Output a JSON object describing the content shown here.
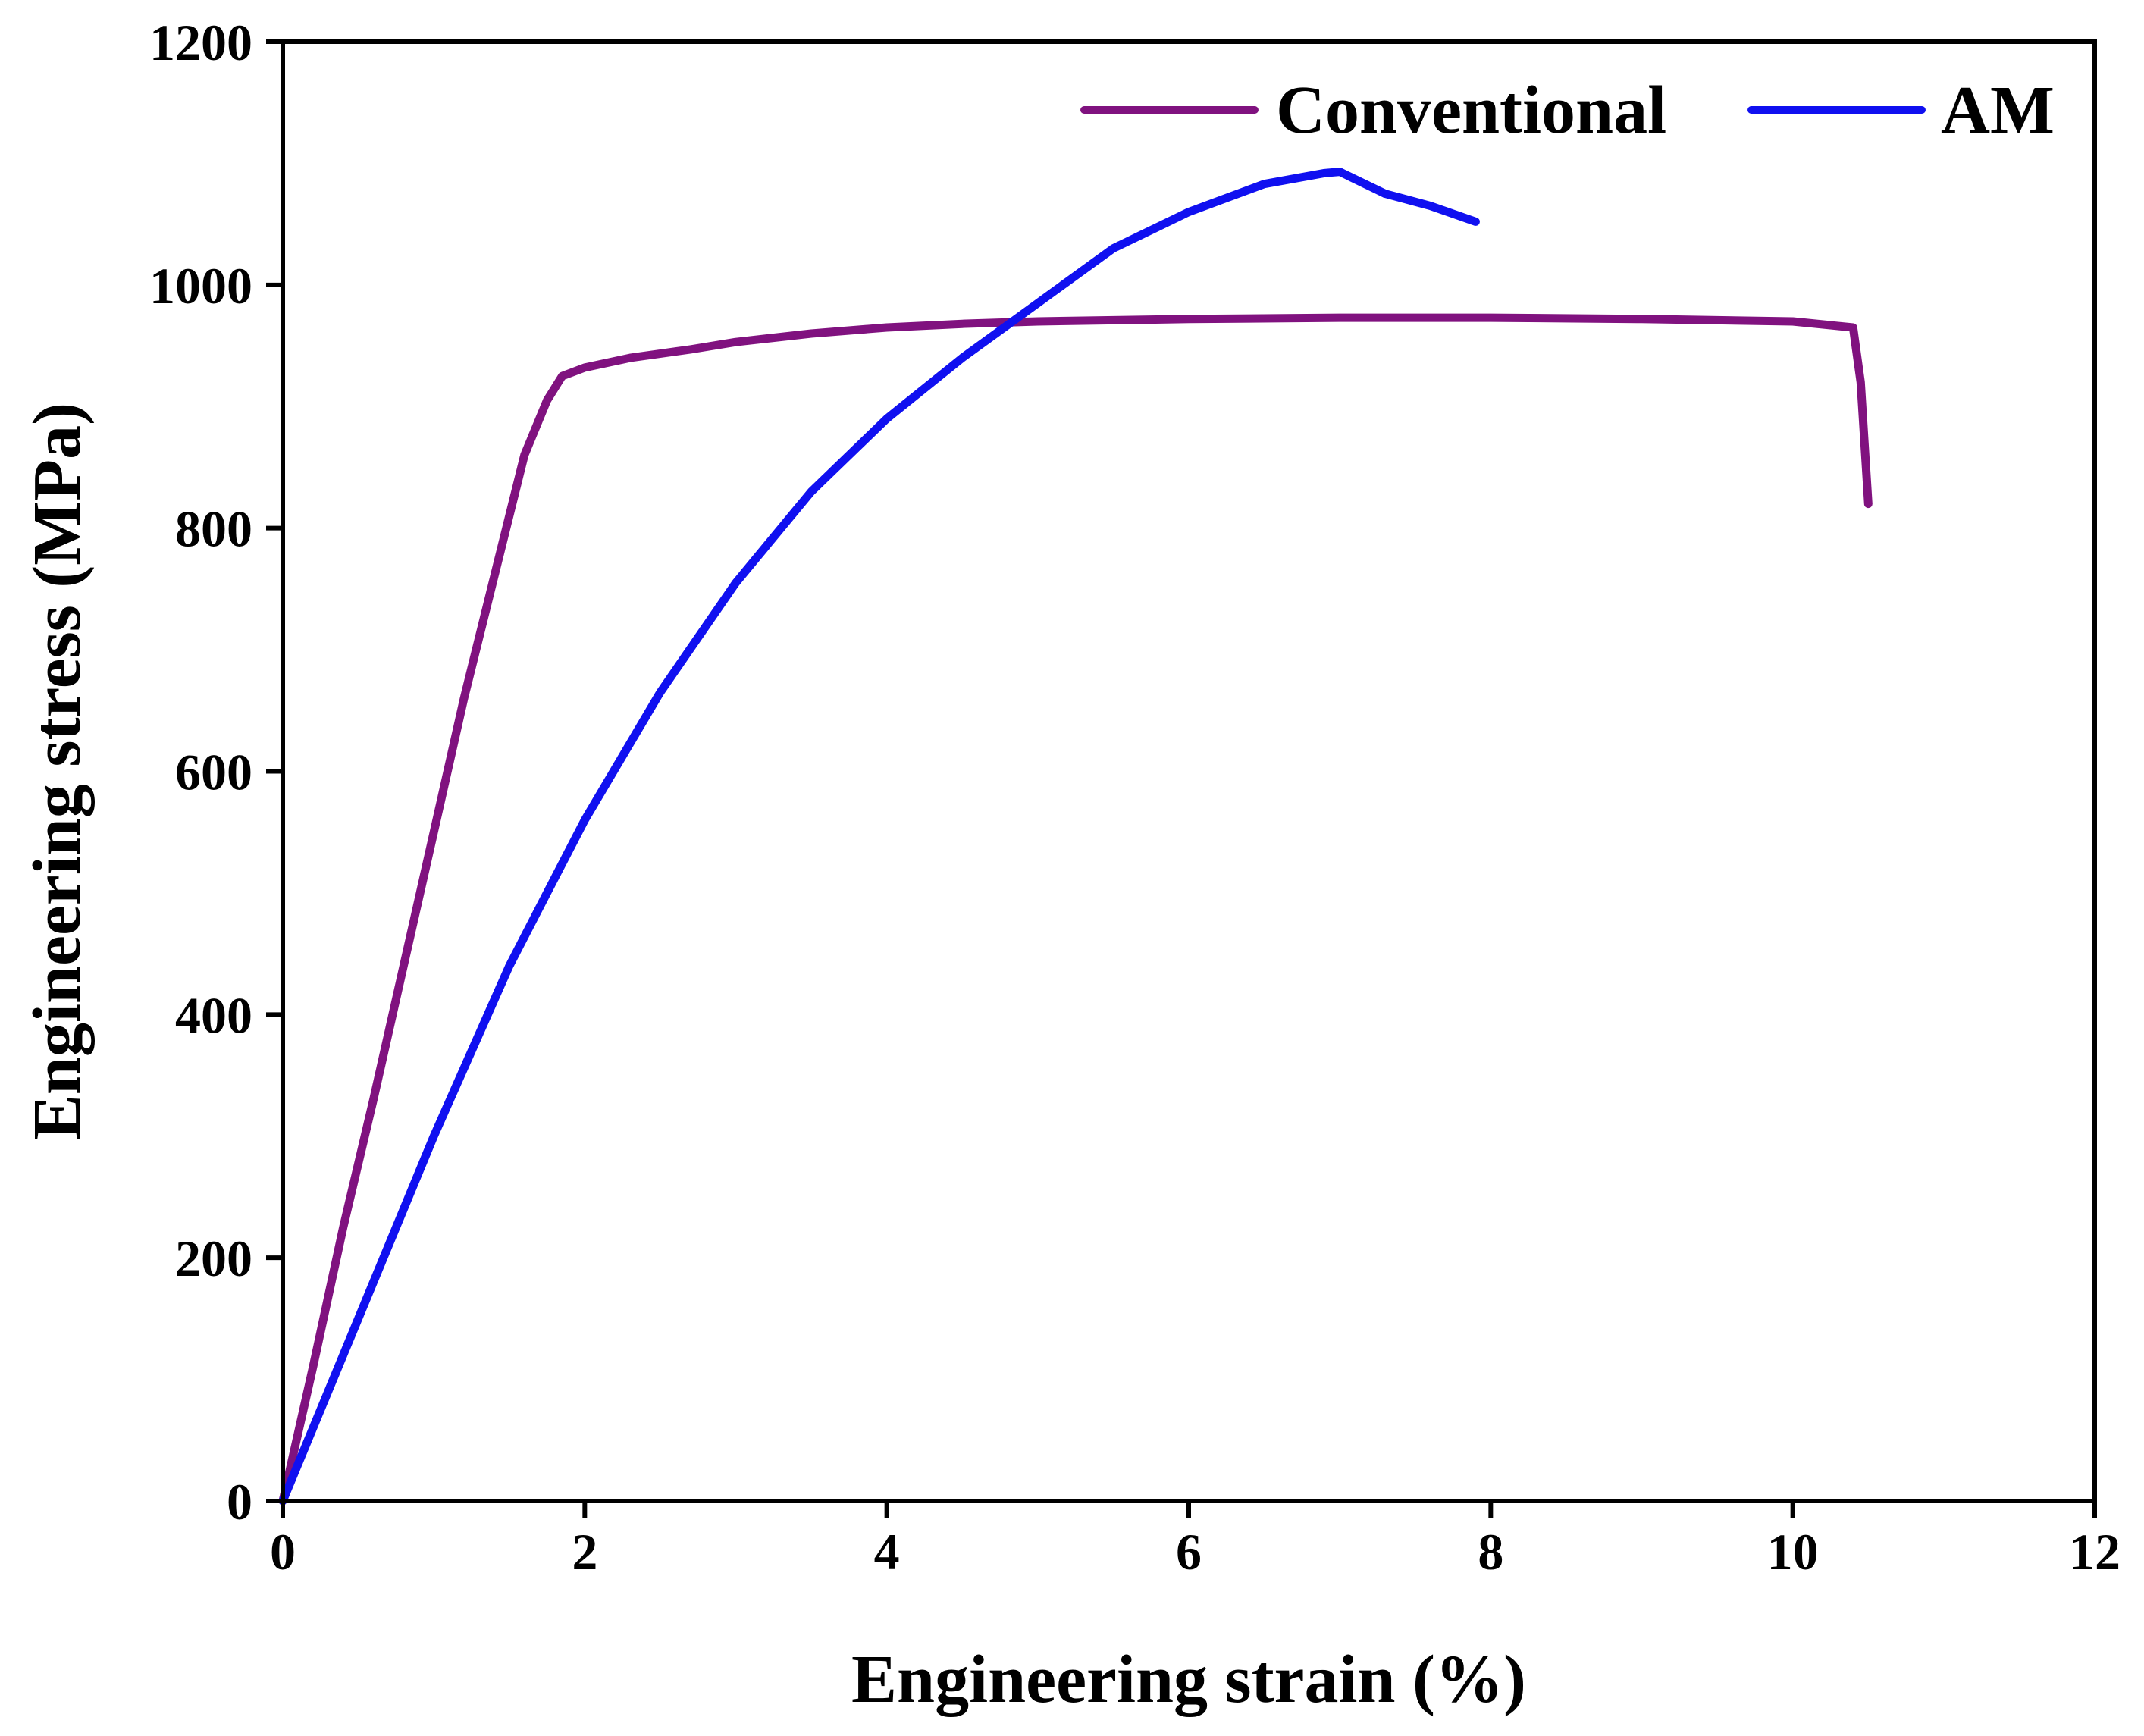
{
  "colors": {
    "conventional": "#80127f",
    "am": "#1010f0",
    "axis": "#000000"
  },
  "chart_data": {
    "type": "line",
    "title": "",
    "xlabel": "Engineering strain (%)",
    "ylabel": "Engineering stress (MPa)",
    "xlim": [
      0,
      12
    ],
    "ylim": [
      0,
      1200
    ],
    "xticks": [
      0,
      2,
      4,
      6,
      8,
      10,
      12
    ],
    "yticks": [
      0,
      200,
      400,
      600,
      800,
      1000,
      1200
    ],
    "grid": false,
    "legend_position": "top-right",
    "series": [
      {
        "name": "Conventional",
        "color": "#80127f",
        "x": [
          0,
          0.2,
          0.4,
          0.6,
          0.8,
          1.0,
          1.2,
          1.4,
          1.6,
          1.75,
          1.85,
          2.0,
          2.3,
          2.7,
          3.0,
          3.5,
          4.0,
          4.5,
          5.0,
          6.0,
          7.0,
          8.0,
          9.0,
          10.0,
          10.4,
          10.45,
          10.5
        ],
        "y": [
          0,
          110,
          225,
          330,
          440,
          550,
          660,
          760,
          860,
          905,
          925,
          932,
          940,
          947,
          953,
          960,
          965,
          968,
          970,
          972,
          973,
          973,
          972,
          970,
          965,
          920,
          820
        ]
      },
      {
        "name": "AM",
        "color": "#1010f0",
        "x": [
          0,
          0.25,
          0.5,
          0.75,
          1.0,
          1.25,
          1.5,
          1.75,
          2.0,
          2.5,
          3.0,
          3.5,
          4.0,
          4.5,
          5.0,
          5.5,
          6.0,
          6.5,
          6.9,
          7.0,
          7.3,
          7.6,
          7.9
        ],
        "y": [
          0,
          75,
          150,
          225,
          300,
          370,
          440,
          500,
          560,
          665,
          755,
          830,
          890,
          940,
          985,
          1030,
          1060,
          1083,
          1092,
          1093,
          1075,
          1065,
          1052
        ]
      }
    ]
  }
}
